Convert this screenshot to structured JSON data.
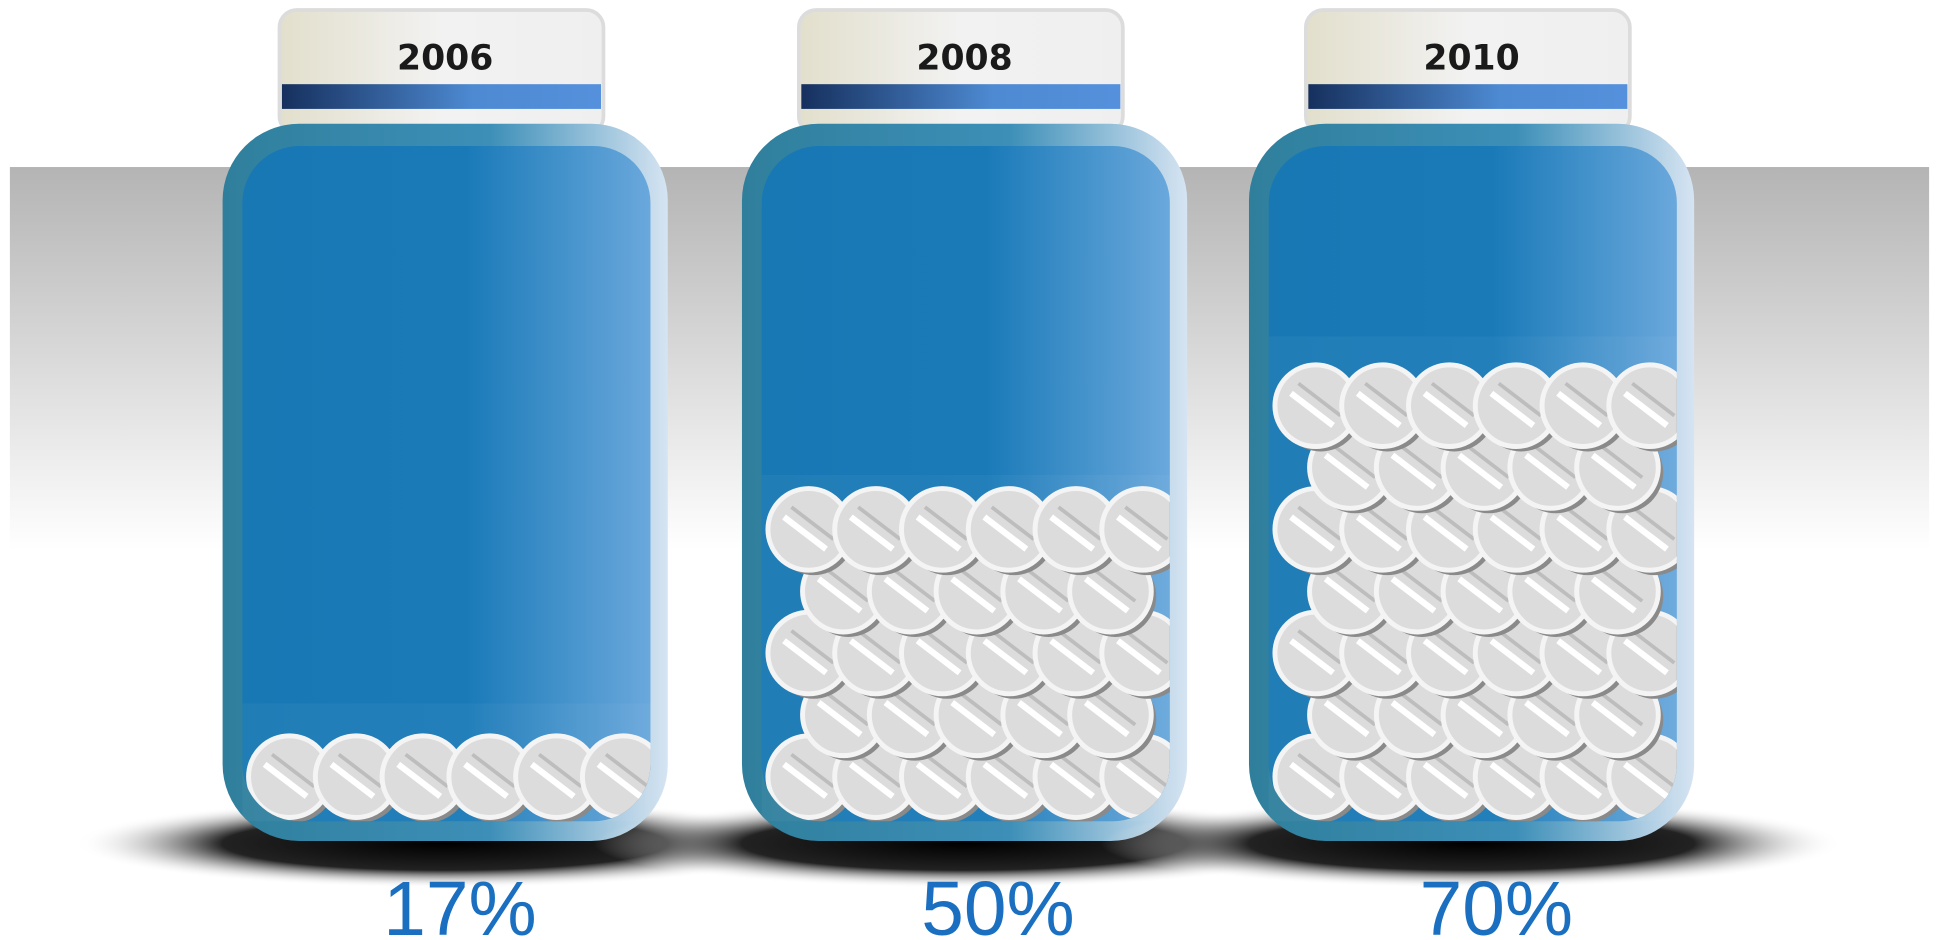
{
  "chart_data": {
    "type": "pictograph",
    "categories": [
      "2006",
      "2008",
      "2010"
    ],
    "values": [
      17,
      50,
      70
    ],
    "value_labels": [
      "17%",
      "50%",
      "70%"
    ],
    "ylim": [
      0,
      100
    ],
    "color": "#1a6fc0"
  }
}
